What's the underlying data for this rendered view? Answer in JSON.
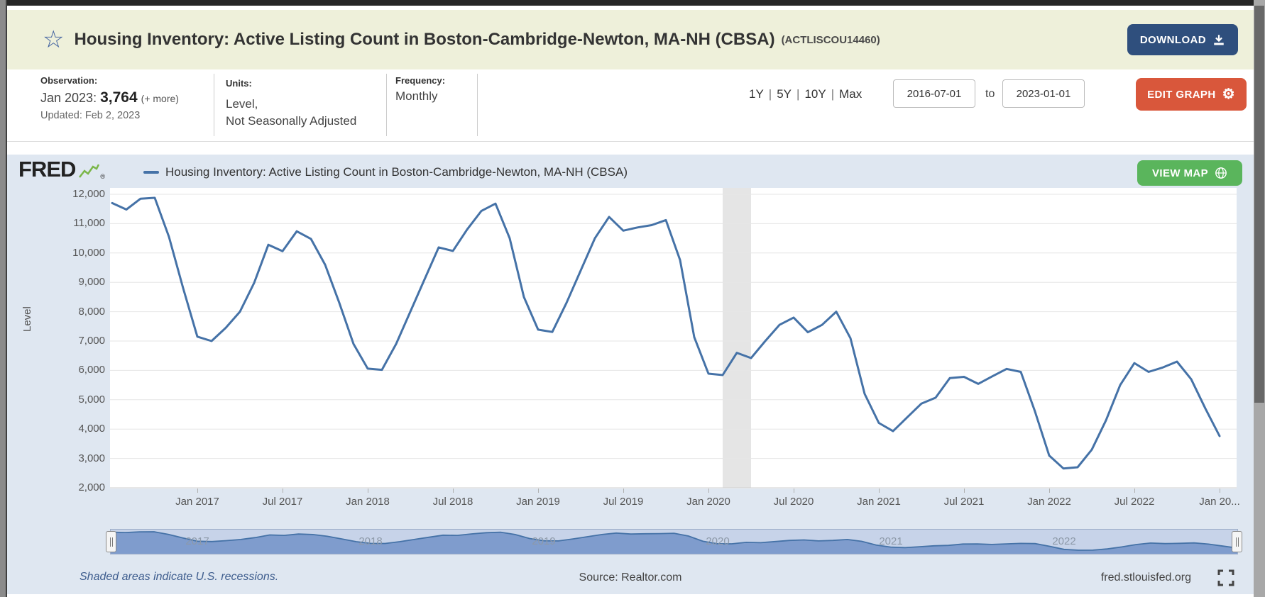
{
  "header": {
    "title": "Housing Inventory: Active Listing Count in Boston-Cambridge-Newton, MA-NH (CBSA)",
    "series_id": "(ACTLISCOU14460)",
    "download_label": "DOWNLOAD"
  },
  "info_bar": {
    "observation": {
      "label": "Observation:",
      "date": "Jan 2023:",
      "value": "3,764",
      "more": "(+ more)",
      "updated": "Updated: Feb 2, 2023"
    },
    "units": {
      "label": "Units:",
      "line1": "Level,",
      "line2": "Not Seasonally Adjusted"
    },
    "frequency": {
      "label": "Frequency:",
      "value": "Monthly"
    },
    "ranges": [
      "1Y",
      "5Y",
      "10Y",
      "Max"
    ],
    "range_separator": "|",
    "date_from": "2016-07-01",
    "to_label": "to",
    "date_to": "2023-01-01",
    "edit_graph_label": "EDIT GRAPH"
  },
  "graph": {
    "brand": "FRED",
    "brand_reg": "®",
    "legend_label": "Housing Inventory: Active Listing Count in Boston-Cambridge-Newton, MA-NH (CBSA)",
    "view_map_label": "VIEW MAP",
    "y_axis_title": "Level"
  },
  "footer": {
    "recession_note": "Shaded areas indicate U.S. recessions.",
    "source": "Source: Realtor.com",
    "site": "fred.stlouisfed.org"
  },
  "colors": {
    "header_bg": "#eef0da",
    "graph_bg": "#dfe7f1",
    "download_navy": "#2f4f7d",
    "edit_orange": "#d9573b",
    "viewmap_green": "#5ab55c"
  },
  "chart_data": {
    "type": "line",
    "title": "Housing Inventory: Active Listing Count in Boston-Cambridge-Newton, MA-NH (CBSA)",
    "ylabel": "Level",
    "ylim": [
      2000,
      12000
    ],
    "y_tick_step": 1000,
    "grid": true,
    "line_color": "#4572a7",
    "grid_color": "#e6e6e6",
    "axis_color": "#cfcfcf",
    "recession_color": "#e5e5e5",
    "slider_fill": "#7f9ccd",
    "x": [
      "2016-07",
      "2016-08",
      "2016-09",
      "2016-10",
      "2016-11",
      "2016-12",
      "2017-01",
      "2017-02",
      "2017-03",
      "2017-04",
      "2017-05",
      "2017-06",
      "2017-07",
      "2017-08",
      "2017-09",
      "2017-10",
      "2017-11",
      "2017-12",
      "2018-01",
      "2018-02",
      "2018-03",
      "2018-04",
      "2018-05",
      "2018-06",
      "2018-07",
      "2018-08",
      "2018-09",
      "2018-10",
      "2018-11",
      "2018-12",
      "2019-01",
      "2019-02",
      "2019-03",
      "2019-04",
      "2019-05",
      "2019-06",
      "2019-07",
      "2019-08",
      "2019-09",
      "2019-10",
      "2019-11",
      "2019-12",
      "2020-01",
      "2020-02",
      "2020-03",
      "2020-04",
      "2020-05",
      "2020-06",
      "2020-07",
      "2020-08",
      "2020-09",
      "2020-10",
      "2020-11",
      "2020-12",
      "2021-01",
      "2021-02",
      "2021-03",
      "2021-04",
      "2021-05",
      "2021-06",
      "2021-07",
      "2021-08",
      "2021-09",
      "2021-10",
      "2021-11",
      "2021-12",
      "2022-01",
      "2022-02",
      "2022-03",
      "2022-04",
      "2022-05",
      "2022-06",
      "2022-07",
      "2022-08",
      "2022-09",
      "2022-10",
      "2022-11",
      "2022-12",
      "2023-01"
    ],
    "values": [
      11700,
      11480,
      11850,
      11880,
      10550,
      8800,
      7150,
      7000,
      7450,
      8000,
      8980,
      10280,
      10060,
      10740,
      10480,
      9600,
      8300,
      6900,
      6060,
      6020,
      6900,
      8000,
      9100,
      10190,
      10070,
      10800,
      11430,
      11680,
      10500,
      8500,
      7390,
      7310,
      8300,
      9400,
      10500,
      11230,
      10760,
      10870,
      10950,
      11120,
      9760,
      7130,
      5890,
      5840,
      6600,
      6420,
      7000,
      7550,
      7800,
      7300,
      7550,
      8000,
      7100,
      5200,
      4210,
      3930,
      4400,
      4870,
      5070,
      5740,
      5780,
      5540,
      5800,
      6050,
      5950,
      4600,
      3100,
      2660,
      2700,
      3300,
      4300,
      5500,
      6250,
      5950,
      6100,
      6300,
      5700,
      4700,
      3764
    ],
    "x_tick_labels": [
      {
        "label": "Jan 2017",
        "i": 6
      },
      {
        "label": "Jul 2017",
        "i": 12
      },
      {
        "label": "Jan 2018",
        "i": 18
      },
      {
        "label": "Jul 2018",
        "i": 24
      },
      {
        "label": "Jan 2019",
        "i": 30
      },
      {
        "label": "Jul 2019",
        "i": 36
      },
      {
        "label": "Jan 2020",
        "i": 42
      },
      {
        "label": "Jul 2020",
        "i": 48
      },
      {
        "label": "Jan 2021",
        "i": 54
      },
      {
        "label": "Jul 2021",
        "i": 60
      },
      {
        "label": "Jan 2022",
        "i": 66
      },
      {
        "label": "Jul 2022",
        "i": 72
      },
      {
        "label": "Jan 20...",
        "i": 78
      }
    ],
    "recession_band": {
      "from": "2020-02",
      "to": "2020-04",
      "i_from": 43,
      "i_to": 45
    },
    "slider_years": [
      {
        "label": "2017",
        "i": 6
      },
      {
        "label": "2018",
        "i": 18
      },
      {
        "label": "2019",
        "i": 30
      },
      {
        "label": "2020",
        "i": 42
      },
      {
        "label": "2021",
        "i": 54
      },
      {
        "label": "2022",
        "i": 66
      }
    ],
    "legend_position": "top-left"
  }
}
